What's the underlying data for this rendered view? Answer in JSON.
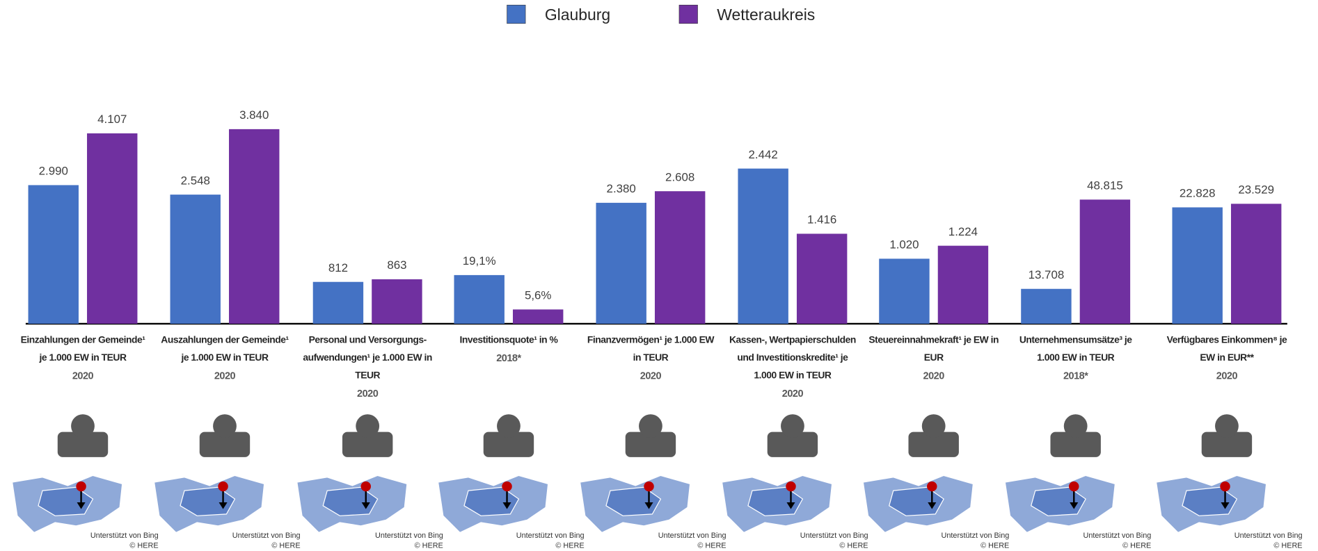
{
  "chart_data": {
    "type": "bar",
    "categories": [
      "Einzahlungen der Gemeinde¹ je 1.000 EW in TEUR",
      "Auszahlungen der Gemeinde¹ je 1.000 EW in TEUR",
      "Personal und Versorgungs-aufwendungen¹ je 1.000 EW in TEUR",
      "Investitionsquote¹ in %",
      "Finanzvermögen¹ je 1.000 EW in TEUR",
      "Kassen-, Wertpapierschulden und Investitionskredite¹ je 1.000 EW in TEUR",
      "Steuereinnahmekraft¹ je EW in EUR",
      "Unternehmensumsätze³ je 1.000 EW in TEUR",
      "Verfügbares Einkommen⁸ je EW in EUR**"
    ],
    "years": [
      "2020",
      "2020",
      "2020",
      "2018*",
      "2020",
      "2020",
      "2020",
      "2018*",
      "2020"
    ],
    "series": [
      {
        "name": "Glauburg",
        "color": "#4472c4",
        "values": [
          2990,
          2548,
          812,
          19.1,
          2380,
          2442,
          1020,
          13708,
          22828
        ],
        "value_labels": [
          "2.990",
          "2.548",
          "812",
          "19,1%",
          "2.380",
          "2.442",
          "1.020",
          "13.708",
          "22.828"
        ]
      },
      {
        "name": "Wetteraukreis",
        "color": "#7030a0",
        "values": [
          4107,
          3840,
          863,
          5.6,
          2608,
          1416,
          1224,
          48815,
          23529
        ],
        "value_labels": [
          "4.107",
          "3.840",
          "863",
          "5,6%",
          "2.608",
          "1.416",
          "1.224",
          "48.815",
          "23.529"
        ]
      }
    ],
    "map_credits": [
      "Unterstützt von Bing",
      "© HERE"
    ]
  }
}
